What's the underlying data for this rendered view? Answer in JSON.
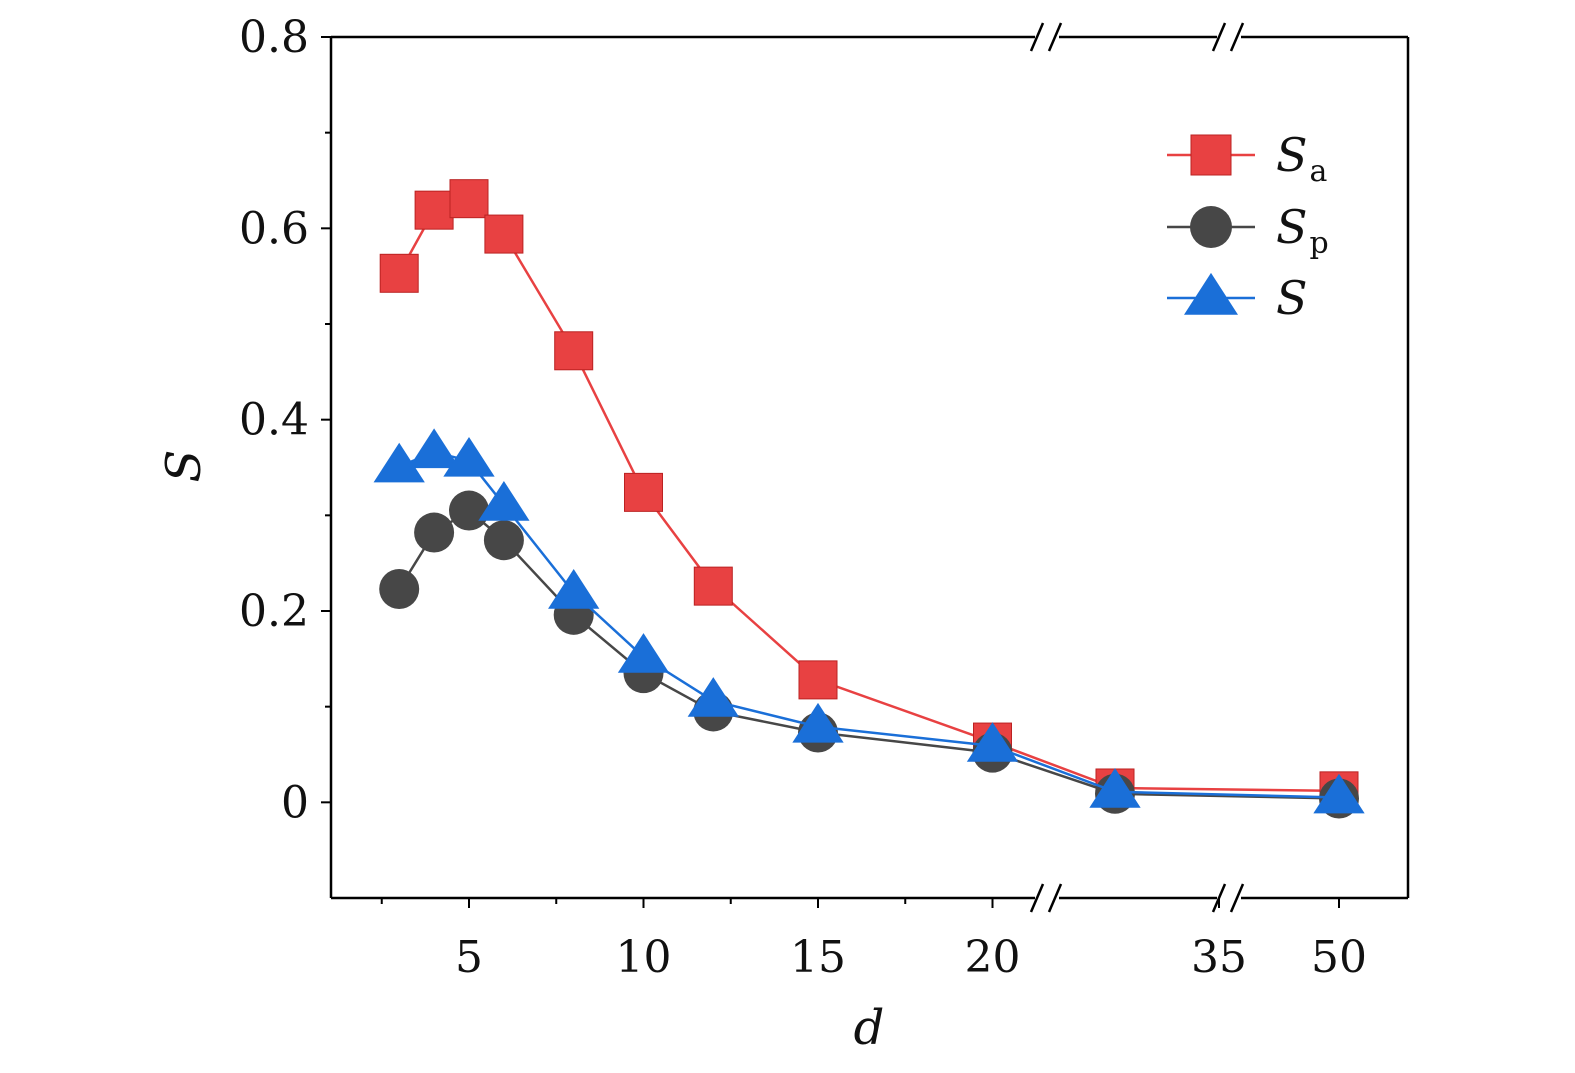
{
  "chart_data": {
    "type": "line",
    "xlabel": "d",
    "ylabel": "S",
    "ylim": [
      -0.1,
      0.8
    ],
    "y_ticks": [
      {
        "value": 0,
        "label": "0"
      },
      {
        "value": 0.2,
        "label": "0.2"
      },
      {
        "value": 0.4,
        "label": "0.4"
      },
      {
        "value": 0.6,
        "label": "0.6"
      },
      {
        "value": 0.8,
        "label": "0.8"
      }
    ],
    "x_tick_labels": [
      "5",
      "10",
      "15",
      "20",
      "35",
      "50"
    ],
    "axis_breaks": [
      "after 20",
      "before 35"
    ],
    "x": [
      3,
      4,
      5,
      6,
      8,
      10,
      12,
      15,
      20,
      25,
      50
    ],
    "series": [
      {
        "name": "S",
        "sub": "a",
        "color": "#e84142",
        "marker": "square",
        "values": [
          0.553,
          0.619,
          0.631,
          0.594,
          0.472,
          0.324,
          0.226,
          0.128,
          0.063,
          0.015,
          0.012
        ]
      },
      {
        "name": "S",
        "sub": "p",
        "color": "#474747",
        "marker": "circle",
        "values": [
          0.223,
          0.282,
          0.305,
          0.274,
          0.196,
          0.135,
          0.095,
          0.073,
          0.052,
          0.009,
          0.004
        ]
      },
      {
        "name": "S",
        "sub": "",
        "color": "#1a6fd8",
        "marker": "triangle",
        "values": [
          0.351,
          0.366,
          0.357,
          0.311,
          0.219,
          0.152,
          0.106,
          0.079,
          0.059,
          0.011,
          0.005
        ]
      }
    ],
    "legend_position": "top-right"
  }
}
